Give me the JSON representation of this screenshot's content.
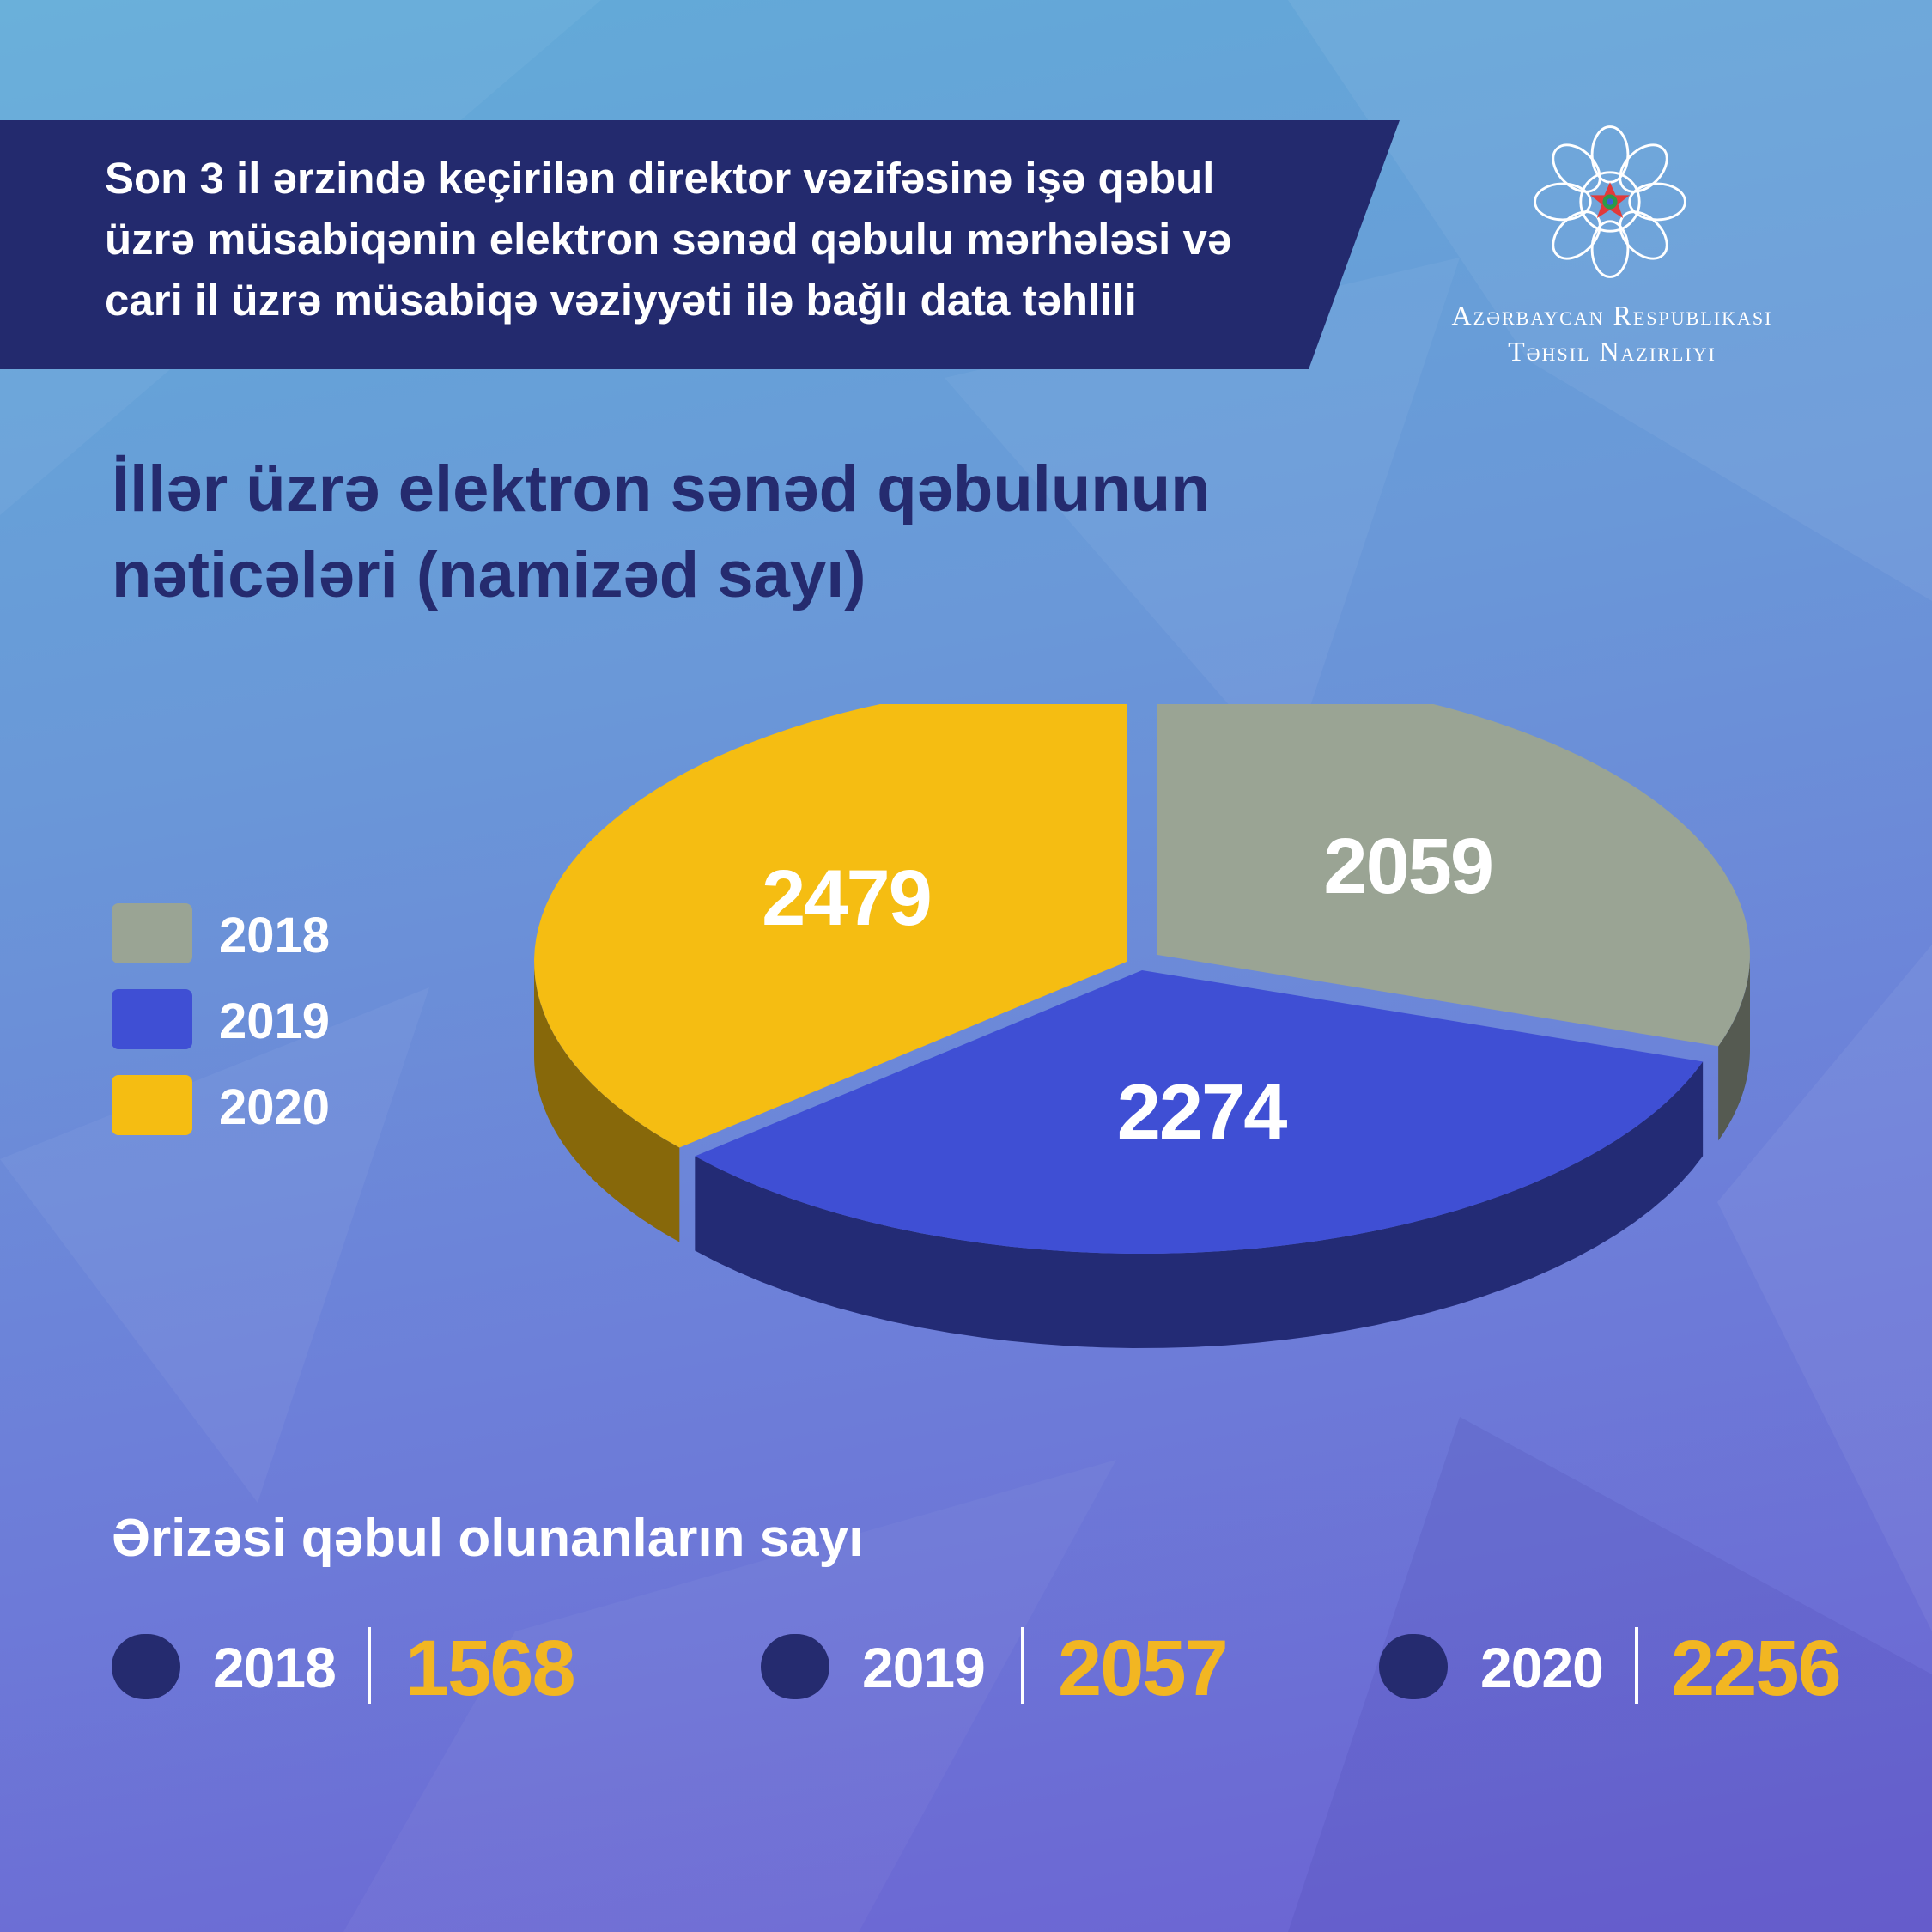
{
  "header": {
    "banner_text": "Son 3 il ərzində keçirilən direktor vəzifəsinə işə qəbul\nüzrə müsabiqənin elektron sənəd qəbulu mərhələsi və\ncari il üzrə müsabiqə vəziyyəti ilə bağlı data təhlili"
  },
  "logo": {
    "line1": "Azərbaycan Respublikası",
    "line2": "Təhsil Nazirliyi",
    "icon": "ministry-emblem-icon"
  },
  "colors": {
    "banner": "#232a6e",
    "grey": "#9aa494",
    "blue": "#3f4fd4",
    "yellow": "#f5bd12",
    "accent_value": "#f2b622",
    "dark_navy": "#252b6f"
  },
  "chart_data": {
    "type": "pie",
    "title": "İllər üzrə elektron sənəd qəbulunun\nnəticələri (namizəd sayı)",
    "categories": [
      "2018",
      "2019",
      "2020"
    ],
    "values": [
      2059,
      2274,
      2479
    ],
    "colors": [
      "#9aa494",
      "#3f4fd4",
      "#f5bd12"
    ],
    "legend_position": "left"
  },
  "accepted": {
    "title": "Ərizəsi qəbul olunanların sayı",
    "items": [
      {
        "year": "2018",
        "value": "1568"
      },
      {
        "year": "2019",
        "value": "2057"
      },
      {
        "year": "2020",
        "value": "2256"
      }
    ]
  }
}
